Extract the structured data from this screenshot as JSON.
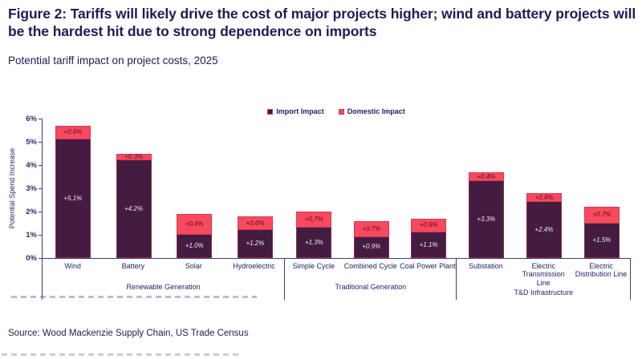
{
  "title": "Figure 2: Tariffs will likely drive the cost of major projects higher; wind and battery projects will be the hardest hit due to strong dependence on imports",
  "subtitle": "Potential tariff impact on project costs, 2025",
  "source": "Source: Wood Mackenzie Supply Chain, US Trade Census",
  "colors": {
    "import_bar": "#451c41",
    "domestic_bar": "#f9495c",
    "bar_border": "#d43a56",
    "text_navy": "#1e1c55",
    "axis_line": "#3e3d77"
  },
  "chart_data": {
    "type": "bar",
    "stacked": true,
    "title": "Potential tariff impact on project costs, 2025",
    "xlabel": "",
    "ylabel": "Potential Spend Increase",
    "ylim": [
      0,
      6
    ],
    "yticks": [
      "6%",
      "5%",
      "4%",
      "3%",
      "2%",
      "1%",
      "0%"
    ],
    "grid": false,
    "legend_position": "top-center",
    "legend": [
      {
        "name": "Import Impact",
        "color": "#451c41"
      },
      {
        "name": "Domestic Impact",
        "color": "#f9495c"
      }
    ],
    "value_label_format": "+X.X%",
    "groups": [
      {
        "name": "Renewable Generation",
        "categories": [
          "Wind",
          "Battery",
          "Solar",
          "Hydroelectric"
        ],
        "series": [
          {
            "name": "Import Impact",
            "values": [
              5.1,
              4.2,
              1.0,
              1.2
            ]
          },
          {
            "name": "Domestic Impact",
            "values": [
              0.6,
              0.3,
              0.9,
              0.6
            ]
          }
        ]
      },
      {
        "name": "Traditional Generation",
        "categories": [
          "Simple Cycle",
          "Combined Cycle",
          "Coal Power Plant"
        ],
        "series": [
          {
            "name": "Import Impact",
            "values": [
              1.3,
              0.9,
              1.1
            ]
          },
          {
            "name": "Domestic Impact",
            "values": [
              0.7,
              0.7,
              0.6
            ]
          }
        ]
      },
      {
        "name": "T&D Infrastructure",
        "categories": [
          "Substation",
          "Electric Transmission Line",
          "Electric Distribution Line"
        ],
        "series": [
          {
            "name": "Import Impact",
            "values": [
              3.3,
              2.4,
              1.5
            ]
          },
          {
            "name": "Domestic Impact",
            "values": [
              0.4,
              0.4,
              0.7
            ]
          }
        ]
      }
    ]
  }
}
